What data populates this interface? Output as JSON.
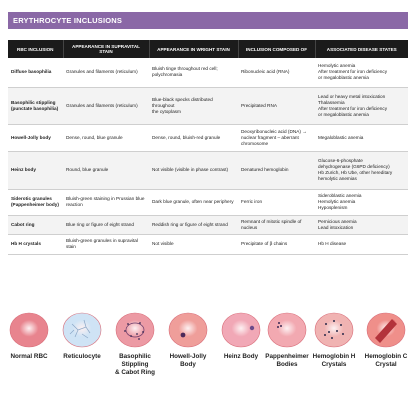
{
  "title": "ERYTHROCYTE INCLUSIONS",
  "table": {
    "headers": [
      "RBC INCLUSION",
      "APPEARANCE IN SUPRAVITAL STAIN",
      "APPEARANCE IN WRIGHT STAIN",
      "INCLUSION COMPOSED OF",
      "ASSOCIATED DISEASE STATES"
    ],
    "rows": [
      {
        "name": [
          "Diffuse basophilia"
        ],
        "supravital": [
          "Granules and filaments (reticulum)"
        ],
        "wright": [
          "Bluish tinge throughout red cell;",
          "polychromasia"
        ],
        "composed": [
          "Ribonucleic acid (RNA)"
        ],
        "disease": [
          "Hemolytic anemia",
          "After treatment for iron deficiency",
          "or megaloblastic anemia"
        ]
      },
      {
        "name": [
          "Basophilic stippling",
          "(punctate basophilia)"
        ],
        "supravital": [
          "Granules and filaments (reticulum)"
        ],
        "wright": [
          "Blue-black specks distributed throughout",
          "the cytoplasm"
        ],
        "composed": [
          "Precipitated RNA"
        ],
        "disease": [
          "Lead or heavy metal intoxication",
          "Thalassemia",
          "After treatment for iron deficiency",
          "or megaloblastic anemia"
        ]
      },
      {
        "name": [
          "Howell-Jolly body"
        ],
        "supravital": [
          "Dense, round, blue granule"
        ],
        "wright": [
          "Dense, round, bluish-red granule"
        ],
        "composed": [
          "Deoxyribonucleic acid (DNA) →",
          "nuclear fragment – aberrant",
          "chromosome"
        ],
        "disease": [
          "Megaloblastic anemia"
        ]
      },
      {
        "name": [
          "Heinz body"
        ],
        "supravital": [
          "Round, blue granule"
        ],
        "wright": [
          "Not visible (visible in phase contrast)"
        ],
        "composed": [
          "Denatured hemoglobin"
        ],
        "disease": [
          "Glucose-6-phosphate",
          "dehydrogenase (G6PD deficiency)",
          "Hb Zurich, Hb Ube, other hereditary",
          "hemolytic anemias"
        ]
      },
      {
        "name": [
          "Siderotic granules",
          "(Pappenheimer body)"
        ],
        "supravital": [
          "Bluish-green staining in Prussian blue",
          "reaction"
        ],
        "wright": [
          "Dark blue granule, often near periphery"
        ],
        "composed": [
          "Ferric iron"
        ],
        "disease": [
          "Sideroblastic anemia",
          "Hemolytic anemia",
          "Hyposplenism"
        ]
      },
      {
        "name": [
          "Cabot ring"
        ],
        "supravital": [
          "Blue ring or figure of eight strand"
        ],
        "wright": [
          "Reddish ring or figure of eight strand"
        ],
        "composed": [
          "Remnant of mitotic spindle of nucleus"
        ],
        "disease": [
          "Pernicious anemia",
          "Lead intoxication"
        ]
      },
      {
        "name": [
          "Hb H crystals"
        ],
        "supravital": [
          "Bluish-green granules in supravital",
          "stain"
        ],
        "wright": [
          "Not visible"
        ],
        "composed": [
          "Precipitate of β chains"
        ],
        "disease": [
          "Hb H disease"
        ]
      }
    ]
  },
  "cells": [
    {
      "label": "Normal RBC",
      "icon": "normal-rbc-icon",
      "color": "#e8848e"
    },
    {
      "label": "Reticulocyte",
      "icon": "reticulocyte-icon",
      "color": "#cfe3f5"
    },
    {
      "label": "Basophilic Stippling\n& Cabot Ring",
      "icon": "basophilic-stippling-icon",
      "color": "#ec9aa4"
    },
    {
      "label": "Howell-Jolly\nBody",
      "icon": "howell-jolly-icon",
      "color": "#ef9e9a"
    },
    {
      "label": "Heinz Body",
      "icon": "heinz-body-icon",
      "color": "#f1a8b6"
    },
    {
      "label": "Pappenheimer\nBodies",
      "icon": "pappenheimer-icon",
      "color": "#f2a9b1"
    },
    {
      "label": "Hemoglobin H\nCrystals",
      "icon": "hemoglobin-h-icon",
      "color": "#f0b3b2"
    },
    {
      "label": "Hemoglobin C\nCrystal",
      "icon": "hemoglobin-c-icon",
      "color": "#ef8f8a"
    }
  ]
}
